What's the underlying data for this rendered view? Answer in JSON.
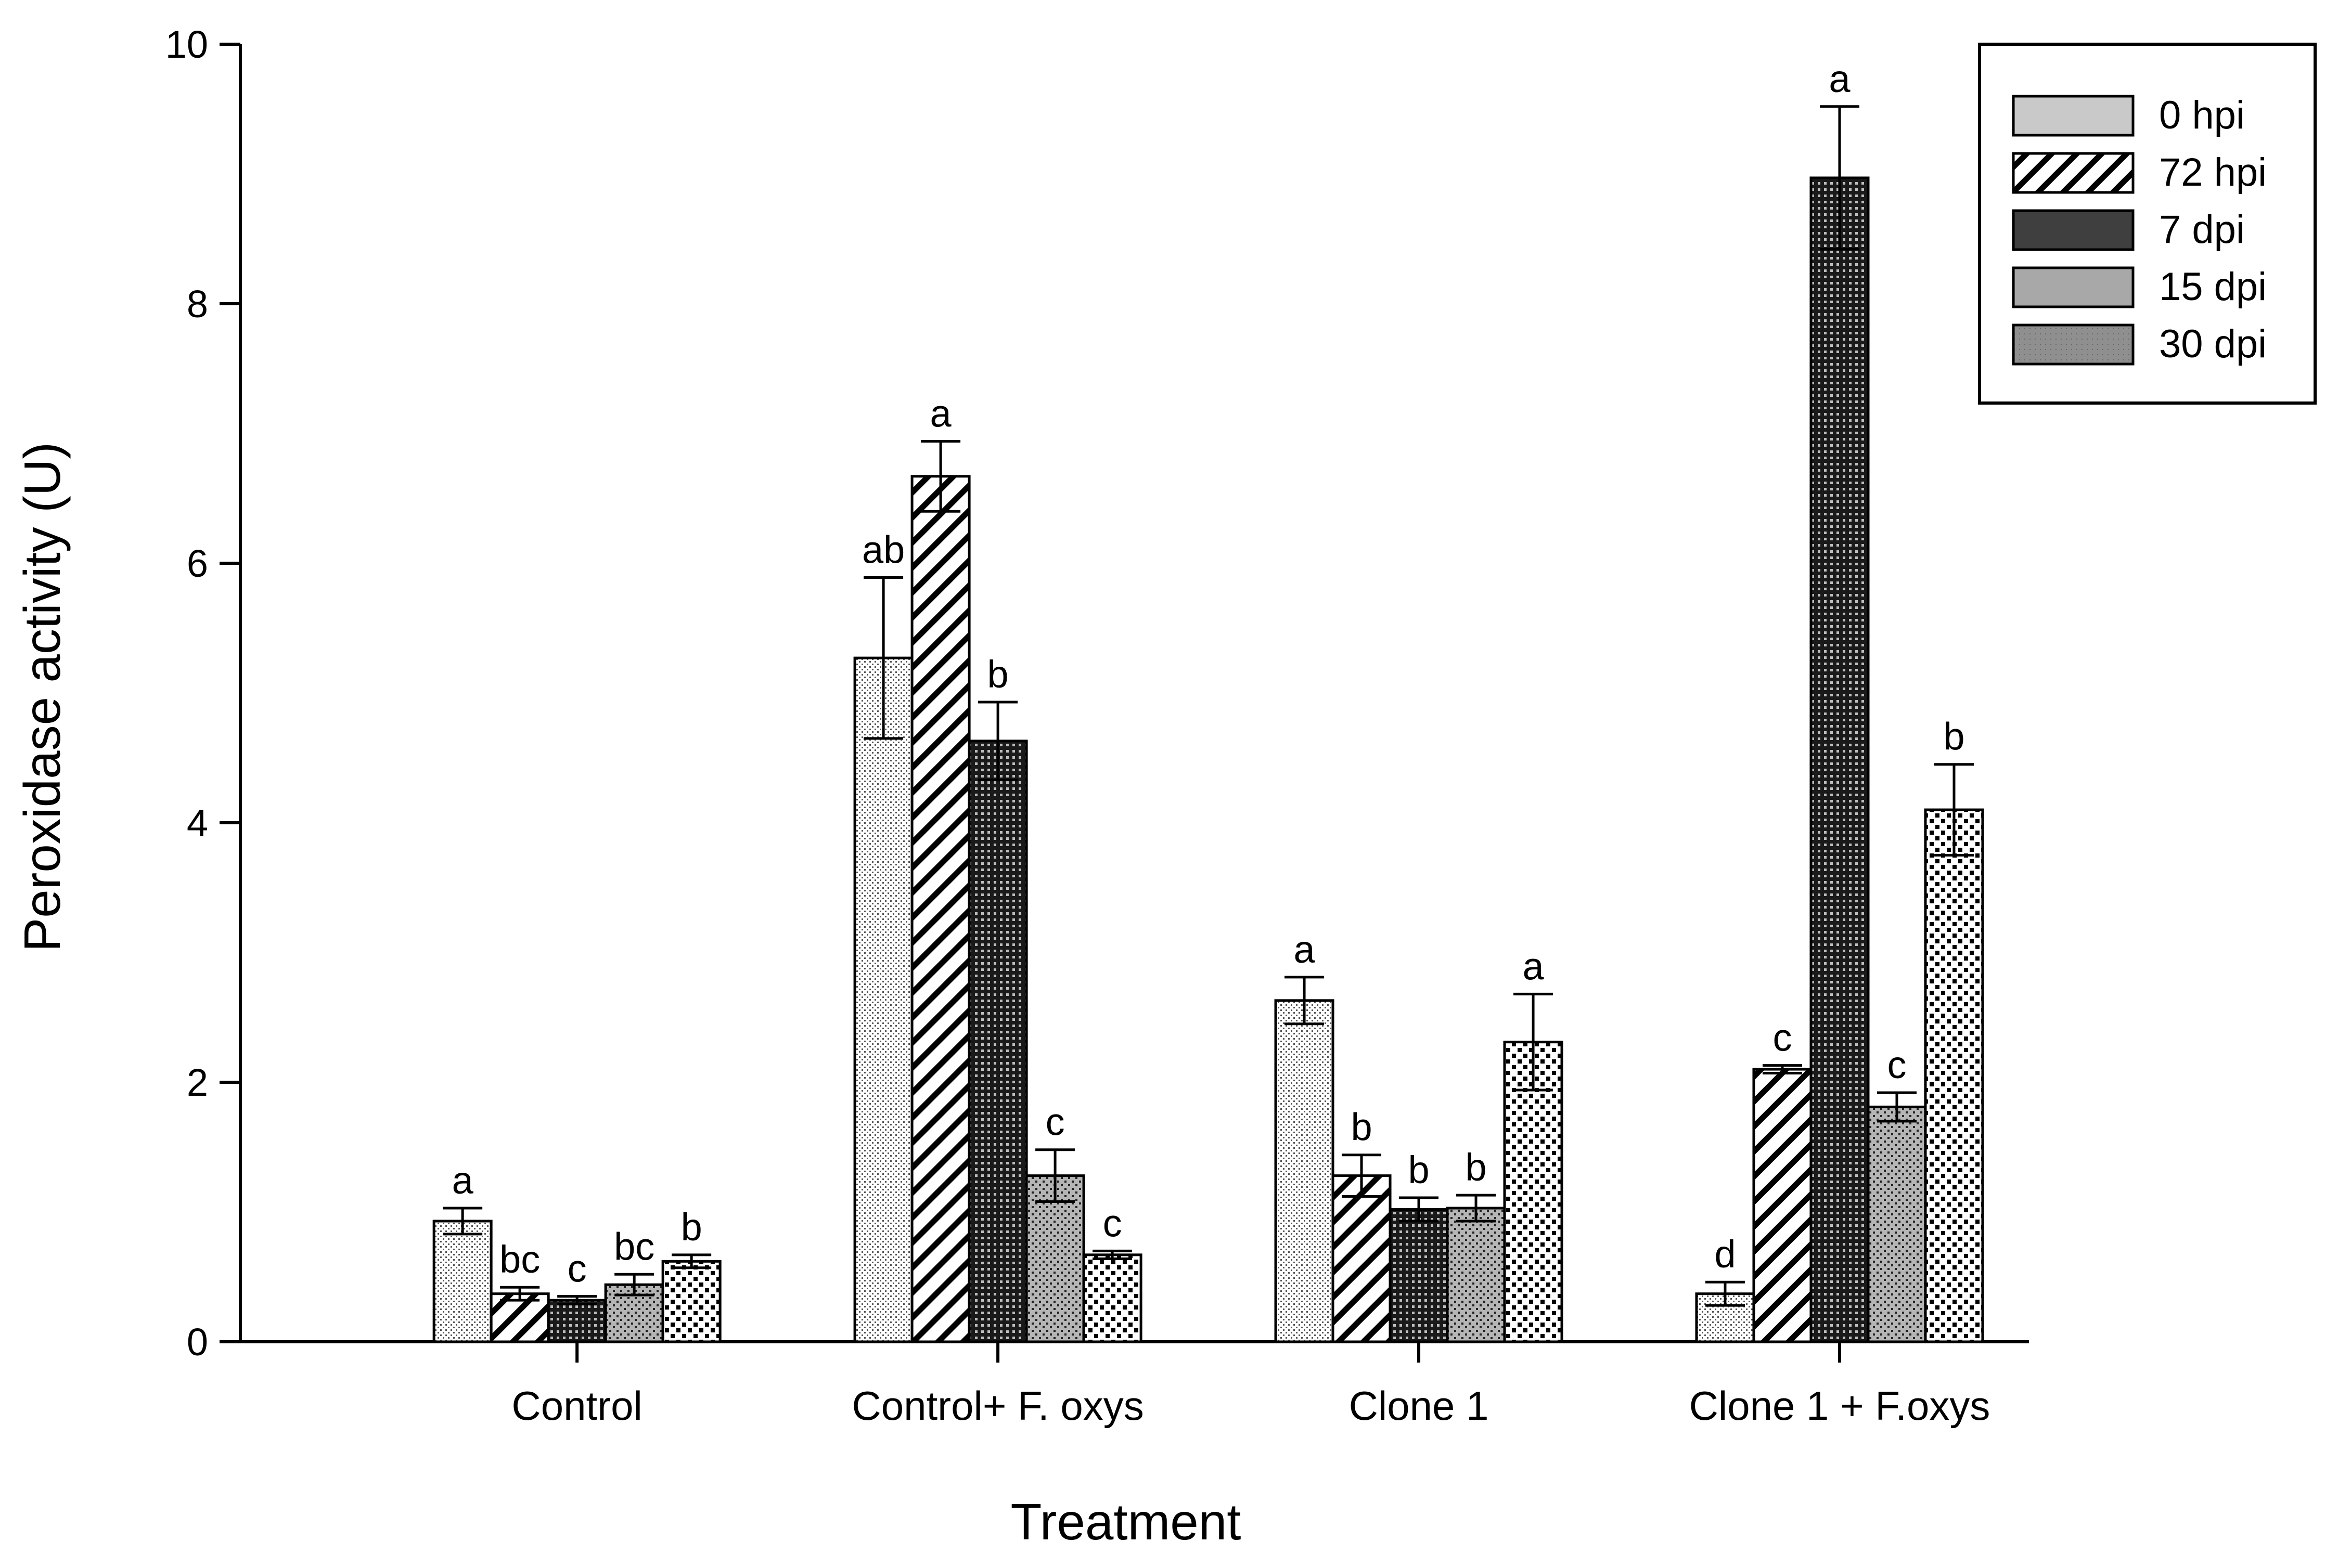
{
  "chart_data": {
    "type": "bar",
    "title": "",
    "xlabel": "Treatment",
    "ylabel": "Peroxidase activity (U)",
    "ylim": [
      0,
      10
    ],
    "yticks": [
      "0",
      "2",
      "4",
      "6",
      "8",
      "10"
    ],
    "categories": [
      "Control",
      "Control+ F. oxys",
      "Clone 1",
      "Clone 1 + F.oxys"
    ],
    "legend_position": "top-right",
    "series": [
      {
        "name": "0 hpi",
        "pattern": "dots-fine",
        "values": [
          0.93,
          5.27,
          2.63,
          0.37
        ],
        "errors": [
          0.1,
          0.62,
          0.18,
          0.09
        ],
        "letters": [
          "a",
          "ab",
          "a",
          "d"
        ]
      },
      {
        "name": "72 hpi",
        "pattern": "diagonal",
        "values": [
          0.37,
          6.67,
          1.28,
          2.1
        ],
        "errors": [
          0.05,
          0.27,
          0.16,
          0.03
        ],
        "letters": [
          "bc",
          "a",
          "b",
          "c"
        ]
      },
      {
        "name": "7 dpi",
        "pattern": "grid-dark",
        "values": [
          0.32,
          4.63,
          1.02,
          8.97
        ],
        "errors": [
          0.03,
          0.3,
          0.09,
          0.55
        ],
        "letters": [
          "c",
          "b",
          "b",
          "a"
        ]
      },
      {
        "name": "15 dpi",
        "pattern": "dots-medium",
        "values": [
          0.44,
          1.28,
          1.03,
          1.81
        ],
        "errors": [
          0.08,
          0.2,
          0.1,
          0.11
        ],
        "letters": [
          "bc",
          "c",
          "b",
          "c"
        ]
      },
      {
        "name": "30 dpi",
        "pattern": "dots-coarse",
        "values": [
          0.62,
          0.67,
          2.31,
          4.1
        ],
        "errors": [
          0.05,
          0.03,
          0.37,
          0.35
        ],
        "letters": [
          "b",
          "c",
          "a",
          "b"
        ]
      }
    ]
  }
}
